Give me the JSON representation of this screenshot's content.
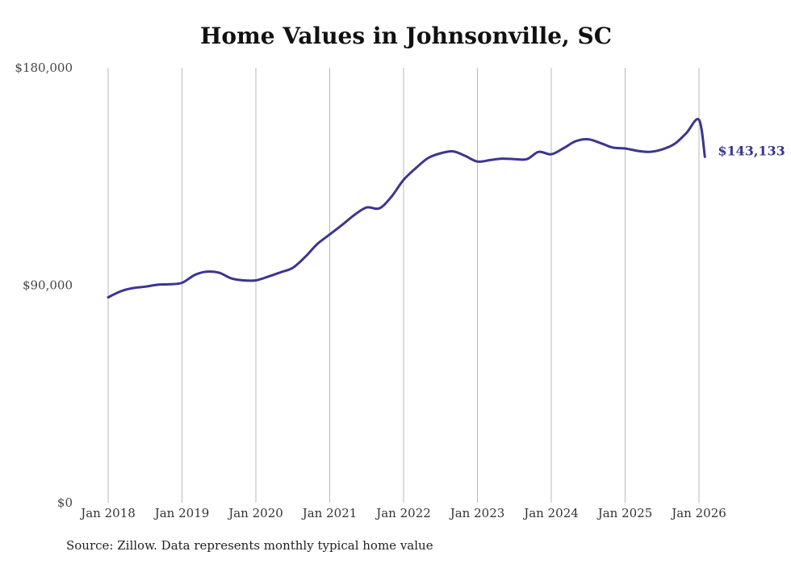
{
  "chart_data": {
    "type": "line",
    "title": "Home Values in Johnsonville, SC",
    "xlabel": "",
    "ylabel": "",
    "ylim": [
      0,
      180000
    ],
    "y_ticks": [
      0,
      90000,
      180000
    ],
    "y_tick_labels": [
      "$0",
      "$90,000",
      "$180,000"
    ],
    "x_ticks": [
      2018,
      2019,
      2020,
      2021,
      2022,
      2023,
      2024,
      2025,
      2026
    ],
    "x_tick_labels": [
      "Jan 2018",
      "Jan 2019",
      "Jan 2020",
      "Jan 2021",
      "Jan 2022",
      "Jan 2023",
      "Jan 2024",
      "Jan 2025",
      "Jan 2026"
    ],
    "grid": "vertical",
    "end_label": "$143,133",
    "series": [
      {
        "name": "Typical home value",
        "color": "#3b3590",
        "x": [
          2018.0,
          2018.17,
          2018.33,
          2018.5,
          2018.67,
          2018.83,
          2019.0,
          2019.17,
          2019.33,
          2019.5,
          2019.67,
          2019.83,
          2020.0,
          2020.17,
          2020.33,
          2020.5,
          2020.67,
          2020.83,
          2021.0,
          2021.17,
          2021.33,
          2021.5,
          2021.67,
          2021.83,
          2022.0,
          2022.17,
          2022.33,
          2022.5,
          2022.67,
          2022.83,
          2023.0,
          2023.17,
          2023.33,
          2023.5,
          2023.67,
          2023.83,
          2024.0,
          2024.17,
          2024.33,
          2024.5,
          2024.67,
          2024.83,
          2025.0,
          2025.17,
          2025.33,
          2025.5,
          2025.67,
          2025.83,
          2026.0,
          2026.08
        ],
        "values": [
          85000,
          87500,
          88800,
          89400,
          90200,
          90400,
          91000,
          94200,
          95600,
          95200,
          92800,
          92000,
          92000,
          93600,
          95300,
          97200,
          101800,
          107000,
          111000,
          115000,
          119000,
          122200,
          121800,
          126400,
          133600,
          138600,
          142600,
          144600,
          145400,
          143600,
          141200,
          141800,
          142400,
          142200,
          142200,
          145200,
          144200,
          146800,
          149600,
          150400,
          148800,
          147000,
          146600,
          145600,
          145200,
          146200,
          148500,
          153000,
          158500,
          143133
        ]
      }
    ]
  },
  "source_note": "Source: Zillow. Data represents monthly typical home value"
}
